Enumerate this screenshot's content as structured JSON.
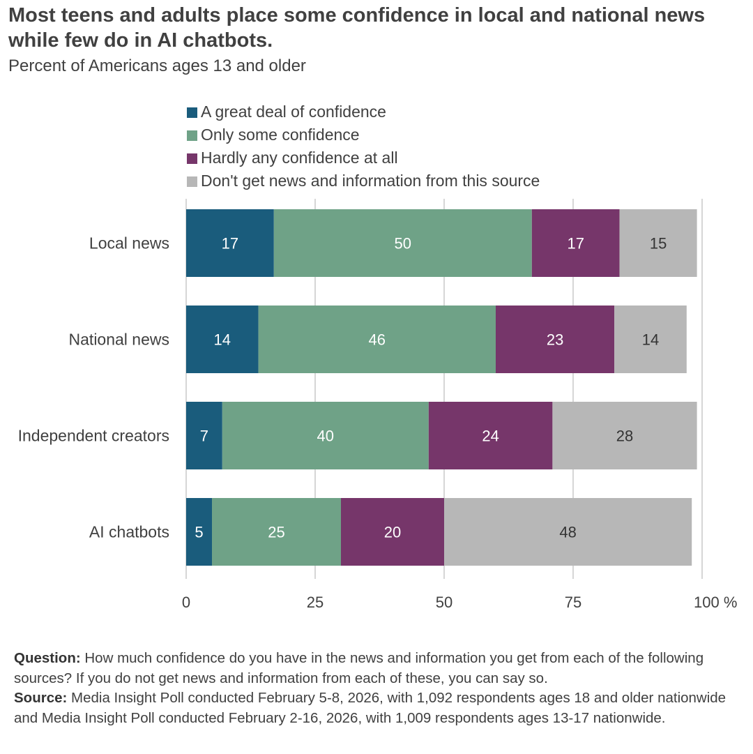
{
  "title": "Most teens and adults place some confidence in local and national news while few do in AI chatbots.",
  "subtitle": "Percent of Americans ages 13 and older",
  "footer": {
    "question_label": "Question:",
    "question_text": "How much confidence do you have in the news and information you get from each of the following sources? If you do not get news and information from each of these, you can say so.",
    "source_label": "Source:",
    "source_text": "Media Insight Poll conducted February 5-8, 2026, with 1,092 respondents ages 18 and older nationwide and Media Insight Poll conducted February 2-16, 2026, with 1,009 respondents ages 13-17 nationwide."
  },
  "chart_data": {
    "type": "bar",
    "orientation": "horizontal",
    "stacked": true,
    "categories": [
      "Local news",
      "National news",
      "Independent creators",
      "AI chatbots"
    ],
    "series": [
      {
        "name": "A great deal of confidence",
        "values": [
          17,
          14,
          7,
          5
        ],
        "color": "#1a5c7c",
        "label_color": "#ffffff"
      },
      {
        "name": "Only some confidence",
        "values": [
          50,
          46,
          40,
          25
        ],
        "color": "#6fa287",
        "label_color": "#ffffff"
      },
      {
        "name": "Hardly any confidence at all",
        "values": [
          17,
          23,
          24,
          20
        ],
        "color": "#76366a",
        "label_color": "#ffffff"
      },
      {
        "name": "Don't get news and information from this source",
        "values": [
          15,
          14,
          28,
          48
        ],
        "color": "#b7b7b7",
        "label_color": "#333333"
      }
    ],
    "xlim": [
      0,
      100
    ],
    "x_ticks": [
      "0",
      "25",
      "50",
      "75",
      "100 %"
    ],
    "x_tick_values": [
      0,
      25,
      50,
      75,
      100
    ],
    "grid": true,
    "legend_position": "top"
  }
}
